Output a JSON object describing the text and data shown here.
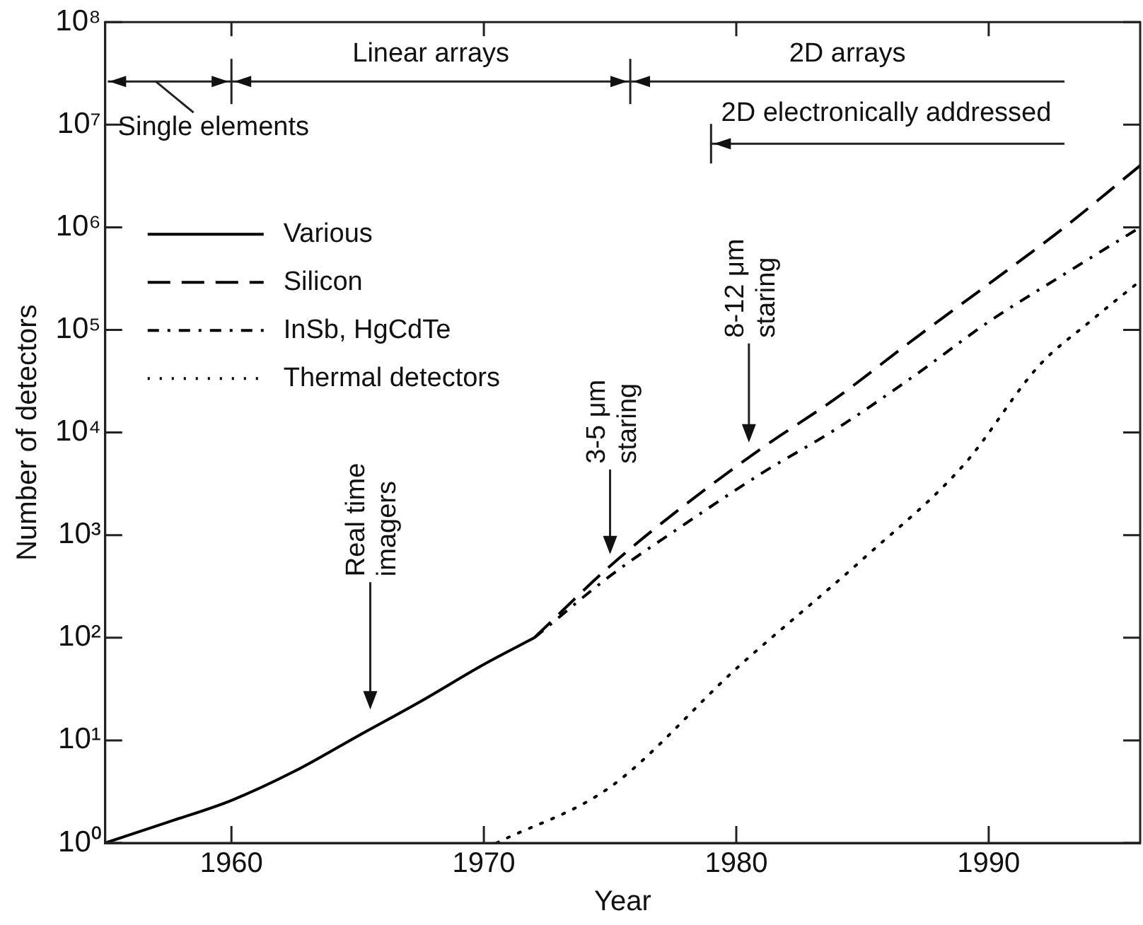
{
  "chart_data": {
    "type": "line",
    "xlabel": "Year",
    "ylabel": "Number of detectors",
    "log": "y",
    "grid": false,
    "legend": "top left",
    "marker": "none",
    "xlim": [
      1955,
      1996
    ],
    "xticks": [
      1960,
      1970,
      1980,
      1990
    ],
    "ylim": [
      1,
      100000000
    ],
    "yticks": [
      {
        "value": 1,
        "label": "10⁰"
      },
      {
        "value": 10,
        "label": "10¹"
      },
      {
        "value": 100,
        "label": "10²"
      },
      {
        "value": 1000,
        "label": "10³"
      },
      {
        "value": 10000,
        "label": "10⁴"
      },
      {
        "value": 100000,
        "label": "10⁵"
      },
      {
        "value": 1000000,
        "label": "10⁶"
      },
      {
        "value": 10000000,
        "label": "10⁷"
      },
      {
        "value": 100000000,
        "label": "10⁸"
      }
    ],
    "series": [
      {
        "name": "Various",
        "color": "#000000",
        "line_style": "solid",
        "x": [
          1955,
          1957.5,
          1960,
          1962.5,
          1965,
          1967.5,
          1970,
          1972
        ],
        "values": [
          1,
          1.6,
          2.6,
          5,
          11,
          24,
          55,
          100
        ]
      },
      {
        "name": "Silicon",
        "color": "#000000",
        "line_style": "dashed",
        "x": [
          1972,
          1975,
          1978,
          1981,
          1984,
          1987,
          1990,
          1993,
          1996
        ],
        "values": [
          100,
          500,
          2000,
          7000,
          22000,
          80000,
          280000,
          1000000,
          4000000
        ]
      },
      {
        "name": "InSb, HgCdTe",
        "color": "#000000",
        "line_style": "dashdot",
        "x": [
          1972,
          1975,
          1978,
          1981,
          1984,
          1987,
          1990,
          1993,
          1996
        ],
        "values": [
          100,
          400,
          1300,
          4000,
          11000,
          35000,
          120000,
          350000,
          1000000
        ]
      },
      {
        "name": "Thermal detectors",
        "color": "#000000",
        "line_style": "dotted",
        "x": [
          1970.5,
          1975,
          1980,
          1985,
          1989,
          1992,
          1994,
          1996
        ],
        "values": [
          1,
          3.5,
          50,
          580,
          4800,
          45000,
          120000,
          300000
        ]
      }
    ],
    "annotations": [
      {
        "text": "Single elements"
      },
      {
        "text": "Linear arrays"
      },
      {
        "text": "2D arrays"
      },
      {
        "text": "2D electronically addressed"
      },
      "Real time imagers",
      "3-5 μm staring",
      "8-12 μm staring"
    ]
  }
}
